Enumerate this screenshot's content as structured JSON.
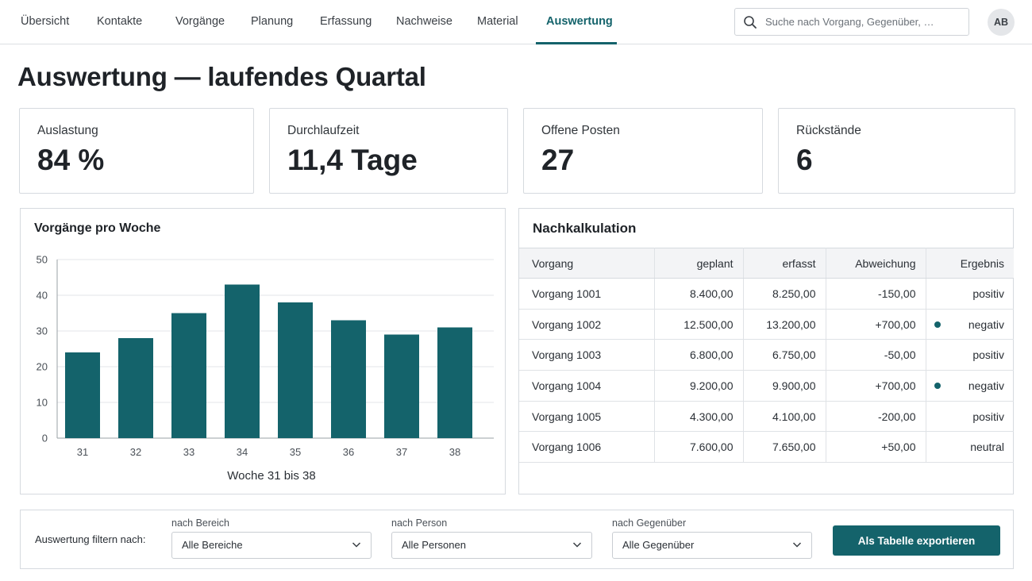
{
  "nav": {
    "items": [
      {
        "label": "Übersicht"
      },
      {
        "label": "Kontakte"
      },
      {
        "label": "Vorgänge"
      },
      {
        "label": "Planung"
      },
      {
        "label": "Erfassung"
      },
      {
        "label": "Nachweise"
      },
      {
        "label": "Material"
      },
      {
        "label": "Auswertung"
      }
    ],
    "active_index": 7,
    "search_placeholder": "Suche nach Vorgang, Gegenüber, …",
    "avatar_initials": "AB"
  },
  "page": {
    "title": "Auswertung — laufendes Quartal"
  },
  "kpis": [
    {
      "label": "Auslastung",
      "value": "84 %"
    },
    {
      "label": "Durchlaufzeit",
      "value": "11,4 Tage"
    },
    {
      "label": "Offene Posten",
      "value": "27"
    },
    {
      "label": "Rückstände",
      "value": "6"
    }
  ],
  "chart_data": {
    "type": "bar",
    "title": "Vorgänge pro Woche",
    "xlabel": "Woche 31 bis 38",
    "ylabel": "",
    "categories": [
      "31",
      "32",
      "33",
      "34",
      "35",
      "36",
      "37",
      "38"
    ],
    "values": [
      24,
      28,
      35,
      43,
      38,
      33,
      29,
      31
    ],
    "ylim": [
      0,
      50
    ],
    "yticks": [
      0,
      10,
      20,
      30,
      40,
      50
    ],
    "grid": true,
    "legend": "none",
    "color": "#14636b"
  },
  "table": {
    "title": "Nachkalkulation",
    "columns": [
      "Vorgang",
      "geplant",
      "erfasst",
      "Abweichung",
      "Ergebnis"
    ],
    "rows": [
      {
        "vorgang": "Vorgang 1001",
        "geplant": "8.400,00",
        "erfasst": "8.250,00",
        "abweichung": "-150,00",
        "ergebnis": "positiv",
        "marker": false
      },
      {
        "vorgang": "Vorgang 1002",
        "geplant": "12.500,00",
        "erfasst": "13.200,00",
        "abweichung": "+700,00",
        "ergebnis": "negativ",
        "marker": true
      },
      {
        "vorgang": "Vorgang 1003",
        "geplant": "6.800,00",
        "erfasst": "6.750,00",
        "abweichung": "-50,00",
        "ergebnis": "positiv",
        "marker": false
      },
      {
        "vorgang": "Vorgang 1004",
        "geplant": "9.200,00",
        "erfasst": "9.900,00",
        "abweichung": "+700,00",
        "ergebnis": "negativ",
        "marker": true
      },
      {
        "vorgang": "Vorgang 1005",
        "geplant": "4.300,00",
        "erfasst": "4.100,00",
        "abweichung": "-200,00",
        "ergebnis": "positiv",
        "marker": false
      },
      {
        "vorgang": "Vorgang 1006",
        "geplant": "7.600,00",
        "erfasst": "7.650,00",
        "abweichung": "+50,00",
        "ergebnis": "neutral",
        "marker": false
      }
    ]
  },
  "filter": {
    "label": "Auswertung filtern nach:",
    "bereich_caption": "nach Bereich",
    "bereich_value": "Alle Bereiche",
    "person_caption": "nach Person",
    "person_value": "Alle Personen",
    "gegenueber_caption": "nach Gegenüber",
    "gegenueber_value": "Alle Gegenüber",
    "export_label": "Als Tabelle exportieren"
  },
  "colors": {
    "accent": "#14636b"
  }
}
